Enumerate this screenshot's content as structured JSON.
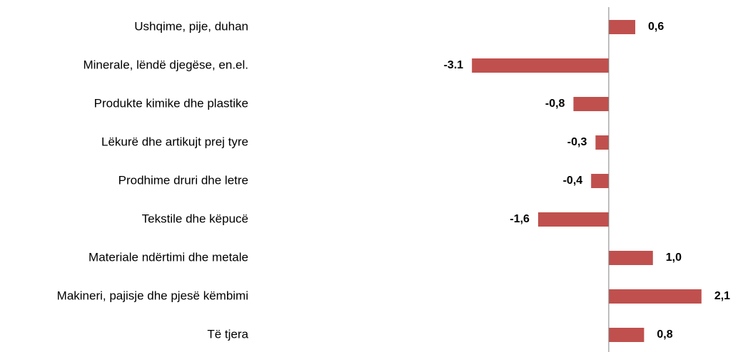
{
  "chart_data": {
    "type": "barh",
    "categories": [
      "Ushqime, pije, duhan",
      "Minerale, lëndë djegëse, en.el.",
      "Produkte kimike dhe plastike",
      "Lëkurë dhe artikujt prej tyre",
      "Prodhime druri dhe letre",
      "Tekstile dhe këpucë",
      "Materiale ndërtimi dhe metale",
      "Makineri, pajisje dhe pjesë këmbimi",
      "Të tjera"
    ],
    "values": [
      0.6,
      -3.1,
      -0.8,
      -0.3,
      -0.4,
      -1.6,
      1.0,
      2.1,
      0.8
    ],
    "value_labels": [
      "0,6",
      "-3.1",
      "-0,8",
      "-0,3",
      "-0,4",
      "-1,6",
      "1,0",
      "2,1",
      "0,8"
    ],
    "color": "#c0504d",
    "xlim": [
      -3.2,
      2.2
    ]
  }
}
